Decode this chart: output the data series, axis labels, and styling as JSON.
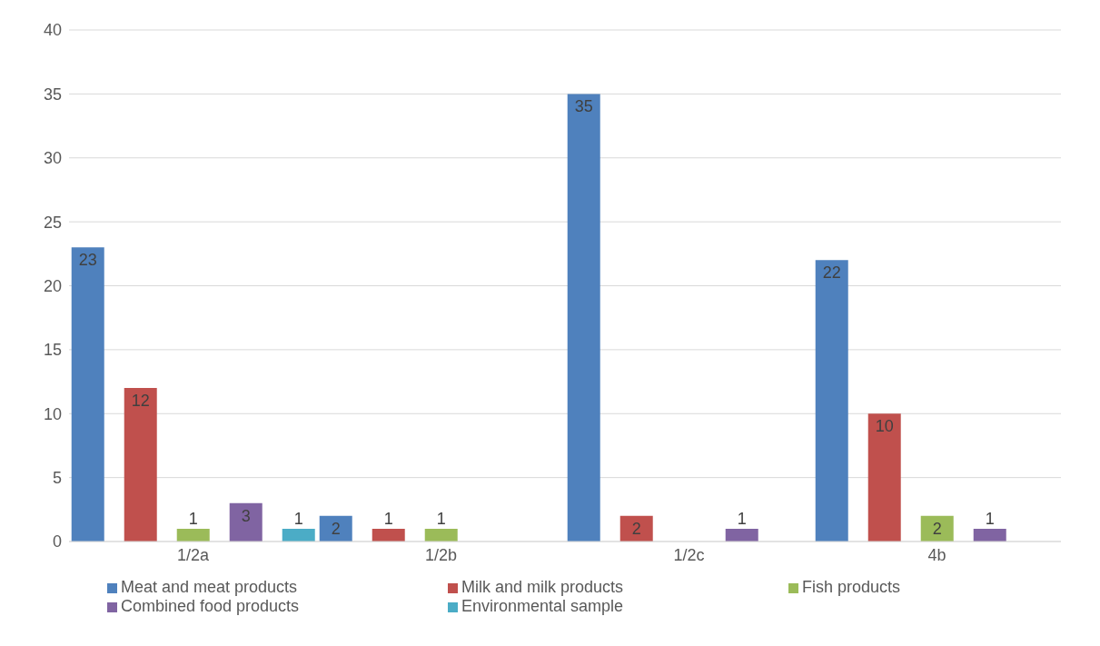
{
  "chart_data": {
    "type": "bar",
    "categories": [
      "1/2a",
      "1/2b",
      "1/2c",
      "4b"
    ],
    "series": [
      {
        "name": "Meat and meat products",
        "color": "#4f81bd",
        "values": [
          23,
          2,
          35,
          22
        ]
      },
      {
        "name": "Milk and milk products",
        "color": "#c0504d",
        "values": [
          12,
          1,
          2,
          10
        ]
      },
      {
        "name": "Fish products",
        "color": "#9bbb59",
        "values": [
          1,
          1,
          null,
          2
        ]
      },
      {
        "name": "Combined food products",
        "color": "#8064a2",
        "values": [
          3,
          null,
          1,
          1
        ]
      },
      {
        "name": "Environmental sample",
        "color": "#4bacc6",
        "values": [
          1,
          null,
          null,
          null
        ]
      }
    ],
    "ylim": [
      0,
      40
    ],
    "yticks": [
      0,
      5,
      10,
      15,
      20,
      25,
      30,
      35,
      40
    ],
    "grid": "y",
    "legend": "bottom",
    "data_labels": true
  }
}
